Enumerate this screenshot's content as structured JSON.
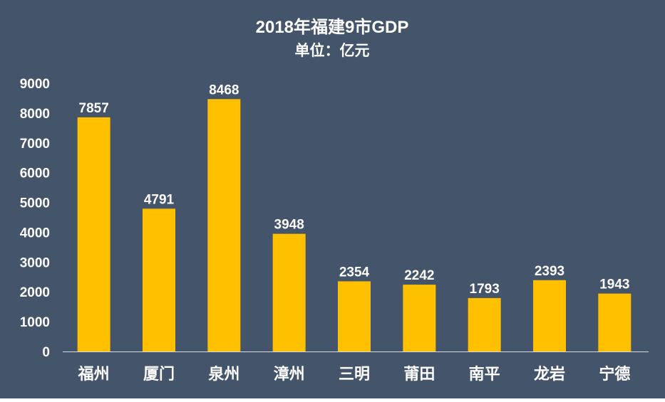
{
  "chart_data": {
    "type": "bar",
    "title": "2018年福建9市GDP",
    "subtitle": "单位：亿元",
    "xlabel": "",
    "ylabel": "",
    "categories": [
      "福州",
      "厦门",
      "泉州",
      "漳州",
      "三明",
      "莆田",
      "南平",
      "龙岩",
      "宁德"
    ],
    "values": [
      7857,
      4791,
      8468,
      3948,
      2354,
      2242,
      1793,
      2393,
      1943
    ],
    "value_labels": [
      "7857",
      "4791",
      "8468",
      "3948",
      "2354",
      "2242",
      "1793",
      "2393",
      "1943"
    ],
    "ylim": [
      0,
      9000
    ],
    "yticks": [
      0,
      1000,
      2000,
      3000,
      4000,
      5000,
      6000,
      7000,
      8000,
      9000
    ],
    "ytick_labels": [
      "0",
      "1000",
      "2000",
      "3000",
      "4000",
      "5000",
      "6000",
      "7000",
      "8000",
      "9000"
    ],
    "grid": false,
    "legend": "none",
    "colors": {
      "background": "#44546A",
      "bar": "#FFC000",
      "text": "#FFFFFF",
      "axis": "#D9D9D9"
    }
  }
}
